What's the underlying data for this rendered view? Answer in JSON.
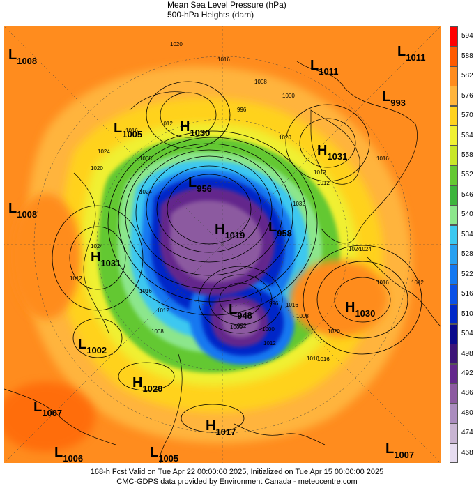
{
  "legend": {
    "mslp_label": "Mean Sea Level Pressure (hPa)",
    "heights_label": "500-hPa Heights (dam)"
  },
  "colorbar": {
    "ticks": [
      "594",
      "588",
      "582",
      "576",
      "570",
      "564",
      "558",
      "552",
      "546",
      "540",
      "534",
      "528",
      "522",
      "516",
      "510",
      "504",
      "498",
      "492",
      "486",
      "480",
      "474",
      "468"
    ],
    "colors": [
      "#ff0000",
      "#ff5a00",
      "#ff8c1e",
      "#ffb43c",
      "#ffd21e",
      "#f0f032",
      "#c8e628",
      "#64c832",
      "#3cb43c",
      "#8ce68c",
      "#3cc8f0",
      "#28a0f0",
      "#1478f0",
      "#0a50e6",
      "#0028c8",
      "#0a0a8c",
      "#3c1478",
      "#64288c",
      "#8c5aa0",
      "#aa8cbe",
      "#c8b4d2",
      "#e6dcf0"
    ]
  },
  "systems": [
    {
      "type": "L",
      "value": "1008"
    },
    {
      "type": "L",
      "value": "1011"
    },
    {
      "type": "L",
      "value": "1011"
    },
    {
      "type": "L",
      "value": "993"
    },
    {
      "type": "L",
      "value": "1005"
    },
    {
      "type": "H",
      "value": "1030"
    },
    {
      "type": "H",
      "value": "1031"
    },
    {
      "type": "L",
      "value": "1008"
    },
    {
      "type": "L",
      "value": "956"
    },
    {
      "type": "H",
      "value": "1019"
    },
    {
      "type": "L",
      "value": "958"
    },
    {
      "type": "H",
      "value": "1031"
    },
    {
      "type": "H",
      "value": "1030"
    },
    {
      "type": "L",
      "value": "948"
    },
    {
      "type": "L",
      "value": "1002"
    },
    {
      "type": "H",
      "value": "1020"
    },
    {
      "type": "L",
      "value": "1007"
    },
    {
      "type": "H",
      "value": "1017"
    },
    {
      "type": "L",
      "value": "1006"
    },
    {
      "type": "L",
      "value": "1005"
    },
    {
      "type": "L",
      "value": "1007"
    }
  ],
  "contour_labels": [
    "1020",
    "1016",
    "1008",
    "1000",
    "1012",
    "1016",
    "1024",
    "1008",
    "1012",
    "1016",
    "1024",
    "1012",
    "1020",
    "1016",
    "1016",
    "1024",
    "1012",
    "1016",
    "1012",
    "1024",
    "1032",
    "1000",
    "992",
    "1000",
    "1008",
    "1012",
    "1016",
    "996",
    "1016",
    "1020",
    "1020",
    "1008",
    "1024",
    "1012",
    "996"
  ],
  "footer": {
    "line1": "168-h Fcst Valid on Tue Apr 22 00:00:00 2025, Initialized on Tue Apr 15 00:00:00 2025",
    "line2": "CMC-GDPS data provided by Environment Canada - meteocentre.com"
  }
}
